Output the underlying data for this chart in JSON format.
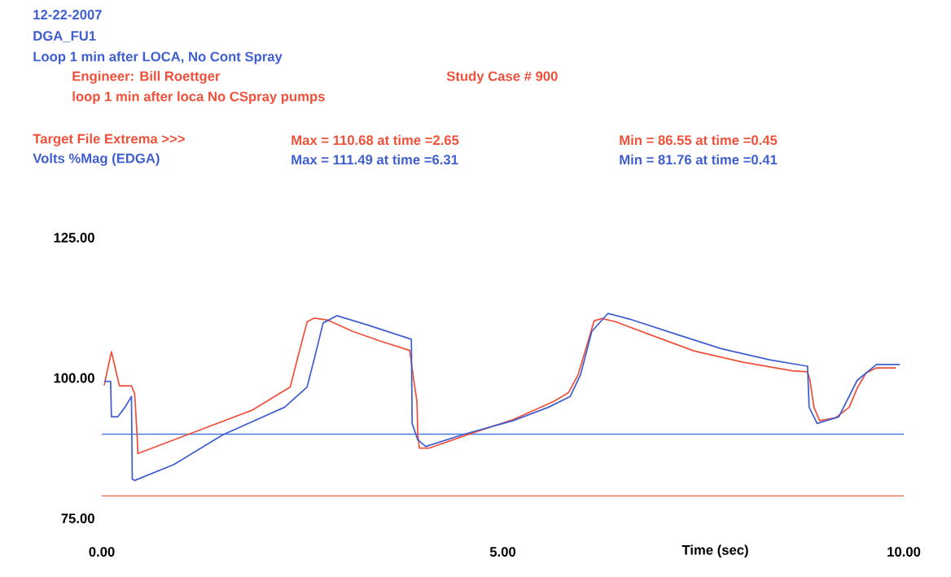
{
  "chart_data": {
    "type": "line",
    "title": "12-22-2007",
    "subtitle": "DGA_FU1",
    "annotations": [
      "Loop 1 min after LOCA, No Cont Spray",
      "Engineer: Bill Roettger",
      "Study Case # 900",
      "loop 1 min after loca No CSpray pumps",
      "Max =  110.68 at time =2.65",
      "Min =  86.55 at time =0.45",
      "Max =  111.49 at time =6.31",
      "Min =  81.76 at time =0.41"
    ],
    "xlabel": "Time (sec)",
    "xlim": [
      0,
      10
    ],
    "ylim": [
      75,
      125
    ],
    "xticks": [
      {
        "value": 0,
        "label": "0.00"
      },
      {
        "value": 5,
        "label": "5.00"
      },
      {
        "value": 10,
        "label": "10.00"
      }
    ],
    "yticks": [
      {
        "value": 75,
        "label": "75.00"
      },
      {
        "value": 100,
        "label": "100.00"
      },
      {
        "value": 125,
        "label": "125.00"
      }
    ],
    "series": [
      {
        "name": "Target File Extrema >>>",
        "color": "#f0503a",
        "x": [
          0.03,
          0.12,
          0.22,
          0.37,
          0.41,
          0.44,
          0.45,
          1.88,
          2.35,
          2.45,
          2.56,
          2.65,
          2.82,
          3.13,
          3.47,
          3.84,
          3.89,
          3.93,
          3.94,
          3.96,
          4.08,
          4.62,
          5.13,
          5.63,
          5.82,
          5.94,
          6.04,
          6.14,
          6.24,
          6.41,
          6.99,
          7.39,
          8.0,
          8.61,
          8.8,
          8.83,
          8.88,
          8.95,
          9.15,
          9.32,
          9.42,
          9.53,
          9.66,
          9.9
        ],
        "values": [
          98.7,
          104.7,
          98.6,
          98.6,
          97.2,
          90,
          86.55,
          94.3,
          98.4,
          104,
          110,
          110.68,
          110.3,
          108.3,
          106.6,
          104.9,
          99.6,
          95.8,
          90,
          87.5,
          87.5,
          90.2,
          92.6,
          95.8,
          97.4,
          100.6,
          105.4,
          110.2,
          110.6,
          110,
          106.9,
          104.8,
          102.8,
          101.3,
          101.1,
          99.6,
          94.8,
          92.4,
          92.9,
          94.8,
          98.2,
          100.9,
          101.8,
          101.8
        ]
      },
      {
        "name": "Volts %Mag (EDGA)",
        "color": "#3f5fd0",
        "x": [
          0.03,
          0.11,
          0.12,
          0.2,
          0.29,
          0.37,
          0.38,
          0.41,
          0.9,
          1.51,
          2.28,
          2.56,
          2.66,
          2.76,
          2.93,
          3.3,
          3.86,
          3.87,
          3.94,
          4.04,
          4.52,
          5.13,
          5.57,
          5.84,
          5.97,
          6.11,
          6.31,
          6.58,
          7.16,
          7.73,
          8.34,
          8.8,
          8.82,
          8.92,
          9.19,
          9.42,
          9.66,
          9.95
        ],
        "values": [
          99.4,
          99.4,
          93.1,
          93.1,
          94.8,
          96.7,
          82,
          81.76,
          84.6,
          89.9,
          94.8,
          98.4,
          104,
          109.8,
          111.1,
          109.5,
          106.9,
          91.9,
          89,
          87.8,
          90,
          92.4,
          94.8,
          96.7,
          100.6,
          108.3,
          111.49,
          110.5,
          107.8,
          105.2,
          103.2,
          102.1,
          94.8,
          91.9,
          93.1,
          99.6,
          102.4,
          102.4
        ]
      }
    ],
    "ref_lines": [
      {
        "axis": "y",
        "value": 90,
        "color": "#4a7ae0"
      },
      {
        "axis": "y",
        "value": 79,
        "color": "#f06040"
      }
    ]
  }
}
